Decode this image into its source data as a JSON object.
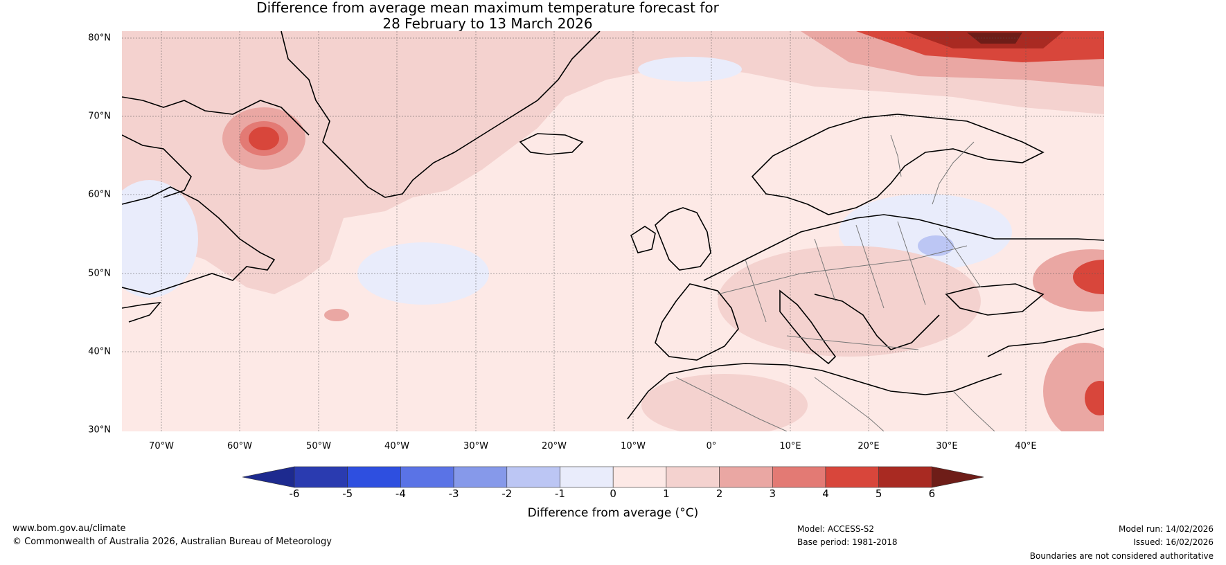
{
  "title": {
    "line1": "Difference from average mean maximum temperature forecast for",
    "line2": "28 February to 13 March 2026"
  },
  "map": {
    "latitude_labels": [
      "80°N",
      "70°N",
      "60°N",
      "50°N",
      "40°N",
      "30°N"
    ],
    "longitude_labels": [
      "70°W",
      "60°W",
      "50°W",
      "40°W",
      "30°W",
      "20°W",
      "10°W",
      "0°",
      "10°E",
      "20°E",
      "30°E",
      "40°E"
    ],
    "background_anomaly_color": "#fde9e6"
  },
  "colorbar": {
    "ticks": [
      "-6",
      "-5",
      "-4",
      "-3",
      "-2",
      "-1",
      "0",
      "1",
      "2",
      "3",
      "4",
      "5",
      "6"
    ],
    "colors": [
      "#1d2a8f",
      "#2a3bb0",
      "#2e4fe0",
      "#5a73e6",
      "#8699ea",
      "#bcc6f4",
      "#e9ecfb",
      "#fde9e6",
      "#f4d2cf",
      "#eaa7a3",
      "#e37a74",
      "#d8463b",
      "#a92a22",
      "#6e1d18"
    ],
    "label": "Difference from average (°C)"
  },
  "footer": {
    "website": "www.bom.gov.au/climate",
    "copyright": "© Commonwealth of Australia 2026, Australian Bureau of Meteorology",
    "model": "Model: ACCESS-S2",
    "base_period": "Base period: 1981-2018",
    "model_run": "Model run: 14/02/2026",
    "issued": "Issued: 16/02/2026",
    "disclaimer": "Boundaries are not considered authoritative"
  }
}
